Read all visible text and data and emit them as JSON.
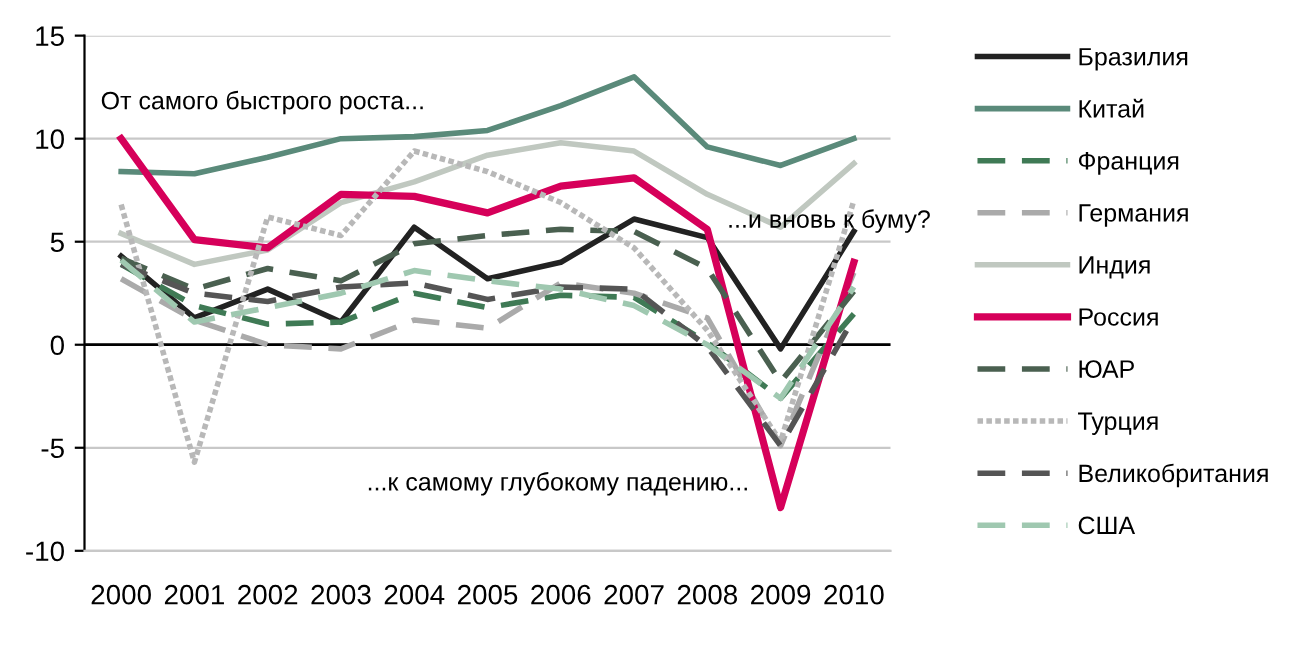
{
  "chart_data": {
    "type": "line",
    "x": [
      2000,
      2001,
      2002,
      2003,
      2004,
      2005,
      2006,
      2007,
      2008,
      2009,
      2010
    ],
    "xlim": [
      1999.5,
      2010.5
    ],
    "xticks": [
      2000,
      2001,
      2002,
      2003,
      2004,
      2005,
      2006,
      2007,
      2008,
      2009,
      2010
    ],
    "ylim": [
      -10,
      15
    ],
    "yticks": [
      -10,
      -5,
      0,
      5,
      10,
      15
    ],
    "grid": "y",
    "legend": "right",
    "ref_lines": [
      {
        "axis": "y",
        "value": 0,
        "color": "#000000"
      }
    ],
    "annotations": [
      "От самого быстрого роста...",
      "...и вновь к буму?",
      "...к самому глубокому падению..."
    ],
    "series": [
      {
        "name": "Бразилия",
        "color": "#222222",
        "line_style": "solid",
        "values": [
          4.3,
          1.3,
          2.7,
          1.1,
          5.7,
          3.2,
          4.0,
          6.1,
          5.2,
          -0.2,
          5.5
        ]
      },
      {
        "name": "Китай",
        "color": "#5a8a7a",
        "line_style": "solid",
        "values": [
          8.4,
          8.3,
          9.1,
          10.0,
          10.1,
          10.4,
          11.6,
          13.0,
          9.6,
          8.7,
          10.0
        ]
      },
      {
        "name": "Франция",
        "color": "#3f7a55",
        "line_style": "dashed",
        "values": [
          3.9,
          1.9,
          1.0,
          1.1,
          2.5,
          1.8,
          2.4,
          2.3,
          0.1,
          -2.6,
          1.5
        ]
      },
      {
        "name": "Германия",
        "color": "#aaaaaa",
        "line_style": "dashed",
        "values": [
          3.2,
          1.2,
          0.0,
          -0.2,
          1.2,
          0.8,
          3.0,
          2.5,
          1.3,
          -4.9,
          3.5
        ]
      },
      {
        "name": "Индия",
        "color": "#c0c8c0",
        "line_style": "solid",
        "values": [
          5.4,
          3.9,
          4.6,
          6.9,
          7.9,
          9.2,
          9.8,
          9.4,
          7.3,
          5.7,
          8.8
        ]
      },
      {
        "name": "Россия",
        "color": "#d6005a",
        "line_style": "solid",
        "values": [
          10.0,
          5.1,
          4.7,
          7.3,
          7.2,
          6.4,
          7.7,
          8.1,
          5.6,
          -7.9,
          4.0
        ]
      },
      {
        "name": "ЮАР",
        "color": "#4a6050",
        "line_style": "dashed",
        "values": [
          4.2,
          2.7,
          3.7,
          3.1,
          4.9,
          5.3,
          5.6,
          5.5,
          3.7,
          -1.8,
          2.6
        ]
      },
      {
        "name": "Турция",
        "color": "#b8b8b8",
        "line_style": "dotted",
        "values": [
          6.8,
          -5.7,
          6.2,
          5.3,
          9.4,
          8.4,
          6.9,
          4.7,
          0.7,
          -4.7,
          7.0
        ]
      },
      {
        "name": "Великобритания",
        "color": "#555555",
        "line_style": "dashed",
        "values": [
          3.9,
          2.5,
          2.1,
          2.8,
          3.0,
          2.2,
          2.8,
          2.7,
          -0.1,
          -4.9,
          1.3
        ]
      },
      {
        "name": "США",
        "color": "#9fc8b0",
        "line_style": "dashed",
        "values": [
          4.1,
          1.1,
          1.8,
          2.5,
          3.6,
          3.1,
          2.7,
          1.9,
          0.0,
          -2.6,
          2.8
        ]
      }
    ]
  }
}
